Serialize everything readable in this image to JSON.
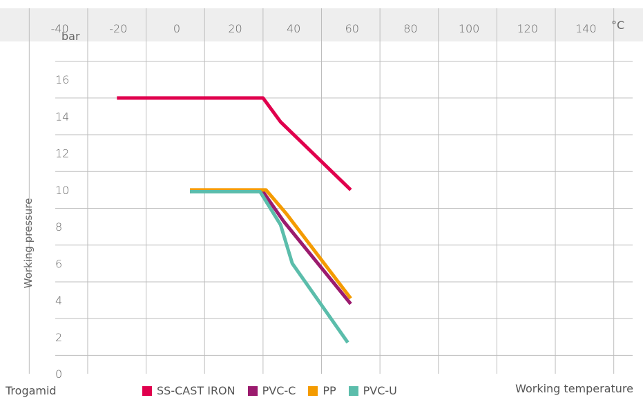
{
  "chart_data": {
    "type": "line",
    "title": "",
    "xlabel": "Working temperature",
    "ylabel": "Working pressure",
    "x_unit": "°C",
    "y_unit": "bar",
    "x_ticks": [
      -40,
      -20,
      0,
      20,
      40,
      60,
      80,
      100,
      120,
      140
    ],
    "y_ticks": [
      0,
      2,
      4,
      6,
      8,
      10,
      12,
      14,
      16
    ],
    "xlim": [
      -60,
      160
    ],
    "ylim": [
      0,
      18
    ],
    "grid": true,
    "legend_position": "bottom",
    "brand_label": "Trogamid",
    "series": [
      {
        "name": "SS-CAST IRON",
        "color": "#e0004d",
        "points": [
          [
            -20,
            15
          ],
          [
            30,
            15
          ],
          [
            36,
            13.7
          ],
          [
            60,
            10
          ]
        ]
      },
      {
        "name": "PVC-C",
        "color": "#9b1b6e",
        "points": [
          [
            5,
            9.9
          ],
          [
            30,
            9.9
          ],
          [
            37,
            8.3
          ],
          [
            60,
            3.8
          ]
        ]
      },
      {
        "name": "PP",
        "color": "#f49b00",
        "points": [
          [
            5,
            10
          ],
          [
            31,
            10
          ],
          [
            38,
            8.7
          ],
          [
            60,
            4.1
          ]
        ]
      },
      {
        "name": "PVC-U",
        "color": "#5bbdab",
        "points": [
          [
            5,
            9.9
          ],
          [
            29,
            9.9
          ],
          [
            36,
            8.1
          ],
          [
            40,
            6
          ],
          [
            59,
            1.7
          ]
        ]
      }
    ]
  }
}
